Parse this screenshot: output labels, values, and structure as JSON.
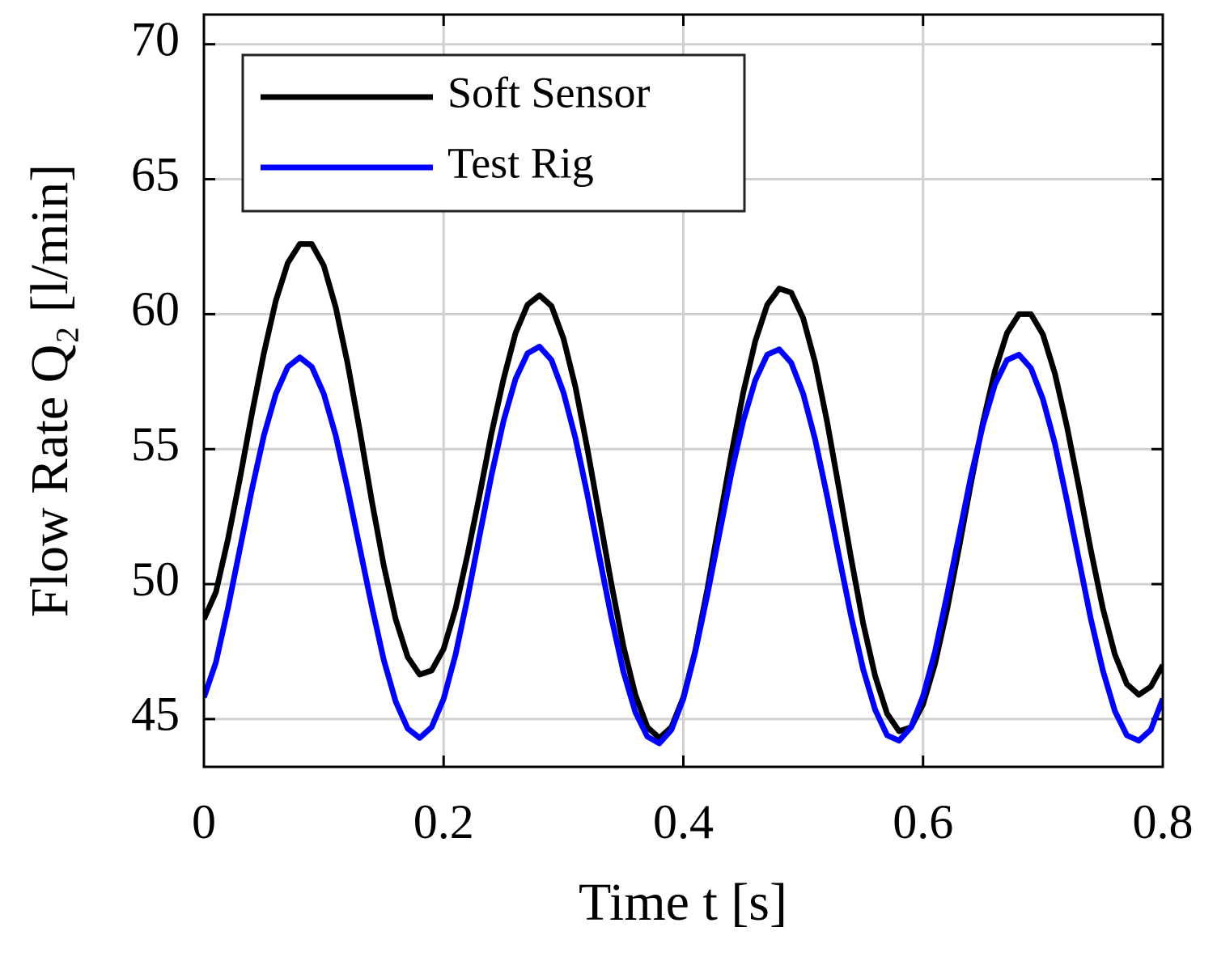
{
  "chart_data": {
    "type": "line",
    "xlabel": "Time t [s]",
    "ylabel": "Flow Rate Q₂ [l/min]",
    "x": [
      0,
      0.01,
      0.02,
      0.03,
      0.04,
      0.05,
      0.06,
      0.07,
      0.08,
      0.09,
      0.1,
      0.11,
      0.12,
      0.13,
      0.14,
      0.15,
      0.16,
      0.17,
      0.18,
      0.19,
      0.2,
      0.21,
      0.22,
      0.23,
      0.24,
      0.25,
      0.26,
      0.27,
      0.28,
      0.29,
      0.3,
      0.31,
      0.32,
      0.33,
      0.34,
      0.35,
      0.36,
      0.37,
      0.38,
      0.39,
      0.4,
      0.41,
      0.42,
      0.43,
      0.44,
      0.45,
      0.46,
      0.47,
      0.48,
      0.49,
      0.5,
      0.51,
      0.52,
      0.53,
      0.54,
      0.55,
      0.56,
      0.57,
      0.58,
      0.59,
      0.6,
      0.61,
      0.62,
      0.63,
      0.64,
      0.65,
      0.66,
      0.67,
      0.68,
      0.69,
      0.7,
      0.71,
      0.72,
      0.73,
      0.74,
      0.75,
      0.76,
      0.77,
      0.78,
      0.79,
      0.8
    ],
    "series": [
      {
        "name": "Soft Sensor",
        "color": "#000000",
        "values": [
          48.7,
          49.7,
          51.65,
          53.9,
          56.3,
          58.55,
          60.5,
          61.9,
          62.6,
          62.6,
          61.8,
          60.25,
          58.15,
          55.7,
          53.1,
          50.7,
          48.7,
          47.3,
          46.65,
          46.8,
          47.6,
          49.1,
          51.1,
          53.3,
          55.6,
          57.6,
          59.3,
          60.35,
          60.7,
          60.3,
          59.1,
          57.3,
          55.0,
          52.5,
          50.0,
          47.7,
          45.9,
          44.7,
          44.3,
          44.7,
          45.8,
          47.55,
          49.8,
          52.3,
          54.8,
          57.1,
          59.0,
          60.35,
          60.95,
          60.8,
          59.85,
          58.2,
          56.0,
          53.5,
          50.95,
          48.55,
          46.6,
          45.2,
          44.55,
          44.7,
          45.55,
          47.05,
          49.05,
          51.35,
          53.75,
          56.0,
          57.9,
          59.3,
          60.0,
          60.0,
          59.25,
          57.8,
          55.85,
          53.6,
          51.25,
          49.1,
          47.4,
          46.3,
          45.9,
          46.2,
          47.0
        ]
      },
      {
        "name": "Test Rig",
        "color": "#0000ff",
        "values": [
          45.8,
          47.1,
          49.1,
          51.3,
          53.5,
          55.5,
          57.05,
          58.05,
          58.4,
          58.05,
          57.05,
          55.5,
          53.5,
          51.35,
          49.2,
          47.2,
          45.65,
          44.65,
          44.3,
          44.7,
          45.75,
          47.4,
          49.5,
          51.8,
          54.05,
          56.05,
          57.6,
          58.55,
          58.8,
          58.3,
          57.1,
          55.4,
          53.3,
          51.0,
          48.75,
          46.75,
          45.25,
          44.35,
          44.1,
          44.6,
          45.75,
          47.5,
          49.6,
          51.85,
          54.1,
          56.05,
          57.55,
          58.5,
          58.7,
          58.2,
          57.05,
          55.35,
          53.25,
          51.0,
          48.8,
          46.85,
          45.35,
          44.4,
          44.2,
          44.7,
          45.85,
          47.5,
          49.6,
          51.8,
          54.0,
          55.9,
          57.4,
          58.3,
          58.5,
          58.0,
          56.85,
          55.2,
          53.1,
          50.9,
          48.7,
          46.8,
          45.3,
          44.4,
          44.2,
          44.6,
          45.75
        ]
      }
    ],
    "xlim": [
      0,
      0.8
    ],
    "xticks": [
      0,
      0.2,
      0.4,
      0.6,
      0.8
    ],
    "ylim": [
      43.23,
      71.1
    ],
    "yticks": [
      45,
      50,
      55,
      60,
      65,
      70
    ],
    "grid": true,
    "legend": "upper left"
  }
}
